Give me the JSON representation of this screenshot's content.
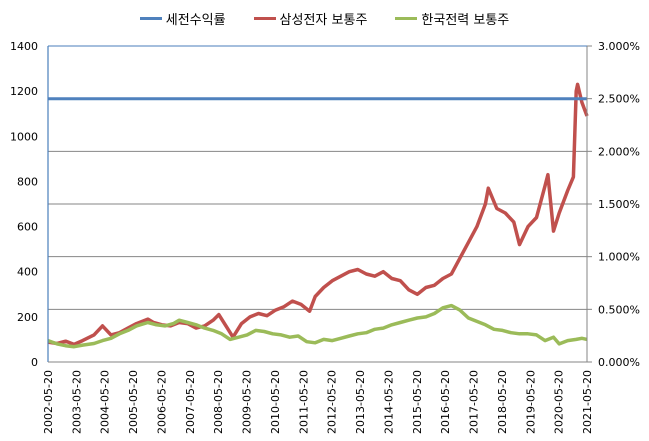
{
  "chart_data": {
    "type": "line",
    "title": "",
    "legend_position": "top",
    "grid": true,
    "legend": [
      {
        "name": "세전수익률",
        "color": "#4F81BD",
        "axis": "right"
      },
      {
        "name": "삼성전자 보통주",
        "color": "#C0504D",
        "axis": "left"
      },
      {
        "name": "한국전력 보통주",
        "color": "#9BBB59",
        "axis": "left"
      }
    ],
    "left_axis": {
      "ylim": [
        0,
        1400
      ],
      "ticks": [
        "0",
        "200",
        "400",
        "600",
        "800",
        "1000",
        "1200",
        "1400"
      ]
    },
    "right_axis": {
      "ylim": [
        0,
        3.0
      ],
      "ticks": [
        "0.000%",
        "0.500%",
        "1.000%",
        "1.500%",
        "2.000%",
        "2.500%",
        "3.000%"
      ]
    },
    "x_tick_labels": [
      "2002-05-20",
      "2003-05-20",
      "2004-05-20",
      "2005-05-20",
      "2006-05-20",
      "2007-05-20",
      "2008-05-20",
      "2009-05-20",
      "2010-05-20",
      "2011-05-20",
      "2012-05-20",
      "2013-05-20",
      "2014-05-20",
      "2015-05-20",
      "2016-05-20",
      "2017-05-20",
      "2018-05-20",
      "2019-05-20",
      "2020-05-20",
      "2021-05-20"
    ],
    "x_range": [
      2002.38,
      2021.38
    ],
    "series": [
      {
        "name": "세전수익률",
        "axis": "right",
        "x": [
          2002.38,
          2021.38
        ],
        "values": [
          2.5,
          2.5
        ]
      },
      {
        "name": "삼성전자 보통주",
        "axis": "left",
        "x": [
          2002.38,
          2002.7,
          2003.0,
          2003.3,
          2003.6,
          2004.0,
          2004.3,
          2004.6,
          2004.9,
          2005.2,
          2005.5,
          2005.9,
          2006.1,
          2006.4,
          2006.7,
          2007.0,
          2007.3,
          2007.6,
          2007.9,
          2008.2,
          2008.4,
          2008.7,
          2008.9,
          2009.2,
          2009.5,
          2009.8,
          2010.1,
          2010.4,
          2010.7,
          2011.0,
          2011.3,
          2011.6,
          2011.8,
          2012.1,
          2012.4,
          2012.7,
          2013.0,
          2013.3,
          2013.6,
          2013.9,
          2014.2,
          2014.5,
          2014.8,
          2015.1,
          2015.4,
          2015.7,
          2016.0,
          2016.3,
          2016.6,
          2016.9,
          2017.2,
          2017.5,
          2017.8,
          2017.9,
          2018.2,
          2018.5,
          2018.8,
          2019.0,
          2019.3,
          2019.6,
          2019.9,
          2020.0,
          2020.2,
          2020.4,
          2020.7,
          2020.9,
          2021.0,
          2021.05,
          2021.2,
          2021.38
        ],
        "values": [
          88,
          82,
          92,
          78,
          95,
          120,
          160,
          120,
          130,
          150,
          170,
          190,
          175,
          165,
          160,
          175,
          170,
          150,
          160,
          185,
          210,
          150,
          110,
          170,
          200,
          215,
          205,
          230,
          245,
          270,
          255,
          225,
          290,
          330,
          360,
          380,
          400,
          410,
          390,
          380,
          400,
          370,
          360,
          320,
          300,
          330,
          340,
          370,
          390,
          460,
          530,
          600,
          700,
          770,
          680,
          660,
          620,
          520,
          600,
          640,
          780,
          830,
          580,
          660,
          760,
          820,
          1200,
          1230,
          1150,
          1090
        ]
      },
      {
        "name": "한국전력 보통주",
        "axis": "left",
        "x": [
          2002.38,
          2002.7,
          2003.0,
          2003.3,
          2003.6,
          2004.0,
          2004.3,
          2004.6,
          2004.9,
          2005.2,
          2005.5,
          2005.9,
          2006.2,
          2006.5,
          2006.8,
          2007.0,
          2007.3,
          2007.6,
          2007.9,
          2008.2,
          2008.5,
          2008.8,
          2009.1,
          2009.4,
          2009.7,
          2010.0,
          2010.3,
          2010.6,
          2010.9,
          2011.2,
          2011.5,
          2011.8,
          2012.1,
          2012.4,
          2012.7,
          2013.0,
          2013.3,
          2013.6,
          2013.9,
          2014.2,
          2014.5,
          2014.8,
          2015.1,
          2015.4,
          2015.7,
          2016.0,
          2016.3,
          2016.6,
          2016.9,
          2017.2,
          2017.5,
          2017.8,
          2018.1,
          2018.4,
          2018.7,
          2019.0,
          2019.3,
          2019.6,
          2019.9,
          2020.2,
          2020.4,
          2020.7,
          2021.0,
          2021.2,
          2021.38
        ],
        "values": [
          95,
          80,
          72,
          68,
          75,
          82,
          95,
          105,
          125,
          140,
          160,
          175,
          165,
          160,
          170,
          185,
          175,
          165,
          150,
          140,
          125,
          100,
          110,
          120,
          140,
          135,
          125,
          120,
          110,
          115,
          90,
          85,
          100,
          95,
          105,
          115,
          125,
          130,
          145,
          150,
          165,
          175,
          185,
          195,
          200,
          215,
          240,
          250,
          230,
          195,
          180,
          165,
          145,
          140,
          130,
          125,
          125,
          120,
          95,
          110,
          80,
          95,
          100,
          105,
          100
        ]
      }
    ]
  }
}
